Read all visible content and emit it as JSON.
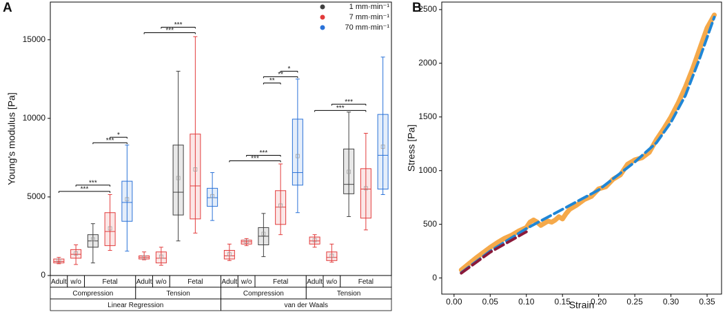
{
  "chart_data": [
    {
      "type": "box",
      "panel": "A",
      "ylabel": "Young's modulus [Pa]",
      "ylim": [
        0,
        17400
      ],
      "yticks": [
        0,
        5000,
        10000,
        15000
      ],
      "legend": "upper right",
      "series": [
        {
          "name": "1 mm·min⁻¹",
          "color": "#404040"
        },
        {
          "name": "7 mm·min⁻¹",
          "color": "#e23b3b"
        },
        {
          "name": "70 mm·min⁻¹",
          "color": "#2a72d8"
        }
      ],
      "boxes": [
        {
          "series": 1,
          "min": 750,
          "q1": 800,
          "median": 900,
          "q3": 1050,
          "max": 1150,
          "mean": 950
        },
        {
          "series": 1,
          "min": 700,
          "q1": 1100,
          "median": 1350,
          "q3": 1650,
          "max": 1950,
          "mean": 1400
        },
        {
          "series": 0,
          "min": 800,
          "q1": 1800,
          "median": 2200,
          "q3": 2600,
          "max": 3300,
          "mean": 2300
        },
        {
          "series": 1,
          "min": 1600,
          "q1": 1900,
          "median": 2800,
          "q3": 4000,
          "max": 5150,
          "mean": 3000
        },
        {
          "series": 2,
          "min": 1550,
          "q1": 3450,
          "median": 4650,
          "q3": 6000,
          "max": 8300,
          "mean": 4850
        },
        {
          "series": 1,
          "min": 1000,
          "q1": 1050,
          "median": 1150,
          "q3": 1250,
          "max": 1500,
          "mean": 1150
        },
        {
          "series": 1,
          "min": 650,
          "q1": 800,
          "median": 1100,
          "q3": 1500,
          "max": 1800,
          "mean": 1200
        },
        {
          "series": 0,
          "min": 2200,
          "q1": 3850,
          "median": 5300,
          "q3": 8300,
          "max": 13000,
          "mean": 6200
        },
        {
          "series": 1,
          "min": 2700,
          "q1": 3600,
          "median": 5700,
          "q3": 9000,
          "max": 15200,
          "mean": 6750
        },
        {
          "series": 2,
          "min": 3500,
          "q1": 4400,
          "median": 4950,
          "q3": 5550,
          "max": 6550,
          "mean": 5050
        },
        {
          "series": 1,
          "min": 950,
          "q1": 1050,
          "median": 1250,
          "q3": 1600,
          "max": 2000,
          "mean": 1350
        },
        {
          "series": 1,
          "min": 1900,
          "q1": 2000,
          "median": 2150,
          "q3": 2250,
          "max": 2350,
          "mean": 2150
        },
        {
          "series": 0,
          "min": 1200,
          "q1": 1950,
          "median": 2500,
          "q3": 3050,
          "max": 3950,
          "mean": 2650
        },
        {
          "series": 1,
          "min": 2600,
          "q1": 3250,
          "median": 4350,
          "q3": 5400,
          "max": 7100,
          "mean": 4450
        },
        {
          "series": 2,
          "min": 4000,
          "q1": 5750,
          "median": 6550,
          "q3": 9950,
          "max": 12500,
          "mean": 7600
        },
        {
          "series": 1,
          "min": 1800,
          "q1": 2000,
          "median": 2200,
          "q3": 2450,
          "max": 2600,
          "mean": 2250
        },
        {
          "series": 1,
          "min": 850,
          "q1": 950,
          "median": 1150,
          "q3": 1500,
          "max": 2000,
          "mean": 1250
        },
        {
          "series": 0,
          "min": 3750,
          "q1": 5200,
          "median": 5800,
          "q3": 8050,
          "max": 10400,
          "mean": 6600
        },
        {
          "series": 1,
          "min": 2900,
          "q1": 3650,
          "median": 5500,
          "q3": 6800,
          "max": 9050,
          "mean": 5550
        },
        {
          "series": 2,
          "min": 5150,
          "q1": 5500,
          "median": 7650,
          "q3": 10250,
          "max": 13900,
          "mean": 8200
        }
      ],
      "brackets": [
        {
          "text": "***",
          "from": 0,
          "to": 3,
          "y": 5350
        },
        {
          "text": "***",
          "from": 1,
          "to": 3,
          "y": 5750
        },
        {
          "text": "***",
          "from": 2,
          "to": 4,
          "y": 8450
        },
        {
          "text": "*",
          "from": 3,
          "to": 4,
          "y": 8800
        },
        {
          "text": "***",
          "from": 5,
          "to": 8,
          "y": 15450
        },
        {
          "text": "***",
          "from": 6,
          "to": 8,
          "y": 15800
        },
        {
          "text": "***",
          "from": 10,
          "to": 13,
          "y": 7300
        },
        {
          "text": "***",
          "from": 11,
          "to": 13,
          "y": 7650
        },
        {
          "text": "**",
          "from": 12,
          "to": 13,
          "y": 12250
        },
        {
          "text": "**",
          "from": 12,
          "to": 14,
          "y": 12650
        },
        {
          "text": "*",
          "from": 13,
          "to": 14,
          "y": 13000
        },
        {
          "text": "***",
          "from": 15,
          "to": 18,
          "y": 10500
        },
        {
          "text": "***",
          "from": 16,
          "to": 18,
          "y": 10900
        }
      ],
      "category_rows": [
        [
          {
            "label": "Adult",
            "span": 1
          },
          {
            "label": "w/o",
            "span": 1
          },
          {
            "label": "Fetal",
            "span": 3
          },
          {
            "label": "Adult",
            "span": 1
          },
          {
            "label": "w/o",
            "span": 1
          },
          {
            "label": "Fetal",
            "span": 3
          },
          {
            "label": "Adult",
            "span": 1
          },
          {
            "label": "w/o",
            "span": 1
          },
          {
            "label": "Fetal",
            "span": 3
          },
          {
            "label": "Adult",
            "span": 1
          },
          {
            "label": "w/o",
            "span": 1
          },
          {
            "label": "Fetal",
            "span": 3
          }
        ],
        [
          {
            "label": "Compression",
            "span": 5
          },
          {
            "label": "Tension",
            "span": 5
          },
          {
            "label": "Compression",
            "span": 5
          },
          {
            "label": "Tension",
            "span": 5
          }
        ],
        [
          {
            "label": "Linear Regression",
            "span": 10
          },
          {
            "label": "van der Waals",
            "span": 10
          }
        ]
      ]
    },
    {
      "type": "line",
      "panel": "B",
      "xlabel": "Strain",
      "ylabel": "Stress [Pa]",
      "xlim": [
        -0.017,
        0.37
      ],
      "ylim": [
        -150,
        2570
      ],
      "xticks": [
        {
          "value": 0,
          "label": "0.00"
        },
        0.05,
        {
          "value": 0.1,
          "label": "0.10"
        },
        0.15,
        {
          "value": 0.2,
          "label": "0.20"
        },
        0.25,
        {
          "value": 0.3,
          "label": "0.30"
        },
        0.35
      ],
      "yticks": [
        0,
        500,
        1000,
        1500,
        2000,
        2500
      ],
      "series": [
        {
          "color": "#f5a94a",
          "dashed": false,
          "x": [
            0.01,
            0.02,
            0.03,
            0.04,
            0.05,
            0.06,
            0.07,
            0.08,
            0.09,
            0.1,
            0.105,
            0.11,
            0.115,
            0.12,
            0.13,
            0.135,
            0.14,
            0.145,
            0.15,
            0.155,
            0.16,
            0.17,
            0.18,
            0.19,
            0.2,
            0.21,
            0.22,
            0.23,
            0.24,
            0.25,
            0.26,
            0.27,
            0.28,
            0.29,
            0.3,
            0.31,
            0.32,
            0.33,
            0.34,
            0.35,
            0.36
          ],
          "values": [
            75,
            130,
            185,
            235,
            285,
            330,
            370,
            400,
            440,
            470,
            520,
            540,
            520,
            490,
            530,
            520,
            540,
            570,
            550,
            600,
            640,
            680,
            730,
            760,
            830,
            850,
            920,
            960,
            1060,
            1100,
            1120,
            1170,
            1290,
            1390,
            1500,
            1630,
            1780,
            1950,
            2140,
            2330,
            2450
          ]
        },
        {
          "color": "#1f86d6",
          "dashed": true,
          "x": [
            0.01,
            0.05,
            0.1,
            0.15,
            0.2,
            0.25,
            0.28,
            0.3,
            0.32,
            0.34,
            0.36
          ],
          "values": [
            50,
            250,
            460,
            640,
            820,
            1080,
            1260,
            1450,
            1700,
            2050,
            2430
          ]
        },
        {
          "color": "#8b1a3a",
          "dashed": true,
          "x": [
            0.01,
            0.05,
            0.1
          ],
          "values": [
            45,
            240,
            430
          ]
        }
      ]
    }
  ]
}
